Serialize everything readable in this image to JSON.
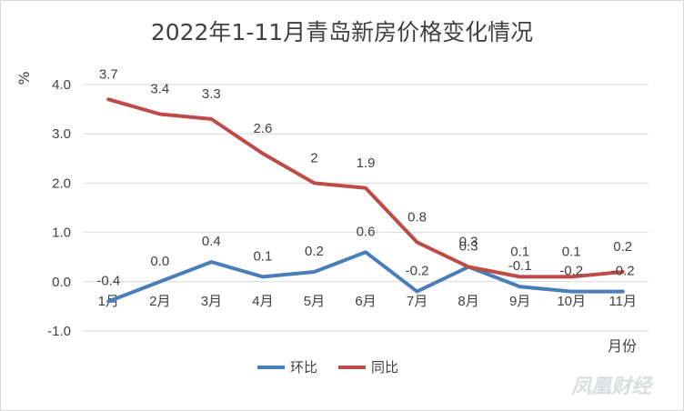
{
  "chart_data": {
    "type": "line",
    "title": "2022年1-11月青岛新房价格变化情况",
    "ylabel": "%",
    "xlabel": "月份",
    "ylim": [
      -1.0,
      4.0
    ],
    "yticks": [
      "-1.0",
      "0.0",
      "1.0",
      "2.0",
      "3.0",
      "4.0"
    ],
    "categories": [
      "1月",
      "2月",
      "3月",
      "4月",
      "5月",
      "6月",
      "7月",
      "8月",
      "9月",
      "10月",
      "11月"
    ],
    "series": [
      {
        "name": "环比",
        "color": "#4a7ebb",
        "values": [
          -0.4,
          0.0,
          0.4,
          0.1,
          0.2,
          0.6,
          -0.2,
          0.3,
          -0.1,
          -0.2,
          -0.2
        ],
        "labels": [
          "-0.4",
          "0.0",
          "0.4",
          "0.1",
          "0.2",
          "0.6",
          "-0.2",
          "0.3",
          "-0.1",
          "-0.2",
          "-0.2"
        ]
      },
      {
        "name": "同比",
        "color": "#be4b48",
        "values": [
          3.7,
          3.4,
          3.3,
          2.6,
          2.0,
          1.9,
          0.8,
          0.3,
          0.1,
          0.1,
          0.2
        ],
        "labels": [
          "3.7",
          "3.4",
          "3.3",
          "2.6",
          "2",
          "1.9",
          "0.8",
          "0.3",
          "0.1",
          "0.1",
          "0.2"
        ]
      }
    ],
    "grid": true,
    "legend_position": "bottom-center"
  },
  "watermark": "凤凰财经"
}
